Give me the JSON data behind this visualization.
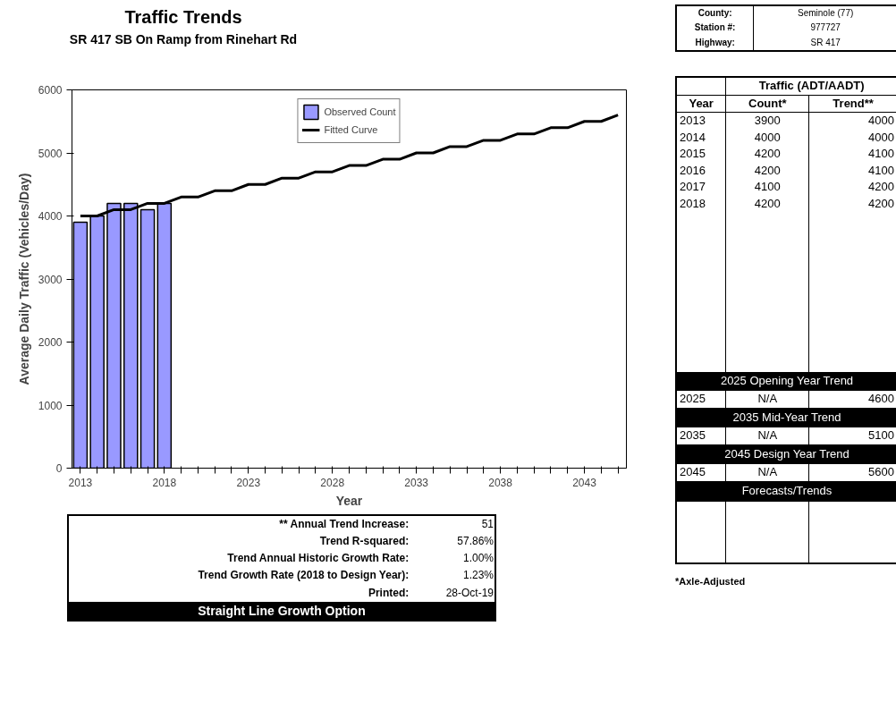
{
  "chart_data": {
    "type": "bar",
    "title": "Traffic Trends",
    "subtitle": "SR 417 SB On Ramp from Rinehart Rd",
    "xlabel": "Year",
    "ylabel": "Average Daily Traffic (Vehicles/Day)",
    "x": [
      2013,
      2014,
      2015,
      2016,
      2017,
      2018
    ],
    "series": [
      {
        "name": "Observed Count",
        "color": "#9999ff",
        "values": [
          3900,
          4000,
          4200,
          4200,
          4100,
          4200
        ]
      },
      {
        "name": "Fitted Curve",
        "type": "line",
        "color": "#000000",
        "x": [
          2013,
          2014,
          2015,
          2016,
          2017,
          2018,
          2019,
          2020,
          2021,
          2022,
          2023,
          2024,
          2025,
          2026,
          2027,
          2028,
          2029,
          2030,
          2031,
          2032,
          2033,
          2034,
          2035,
          2036,
          2037,
          2038,
          2039,
          2040,
          2041,
          2042,
          2043,
          2044,
          2045
        ],
        "values": [
          4000,
          4000,
          4100,
          4100,
          4200,
          4200,
          4300,
          4300,
          4400,
          4400,
          4500,
          4500,
          4600,
          4600,
          4700,
          4700,
          4800,
          4800,
          4900,
          4900,
          5000,
          5000,
          5100,
          5100,
          5200,
          5200,
          5300,
          5300,
          5400,
          5400,
          5500,
          5500,
          5600
        ]
      }
    ],
    "xlim": [
      2012.5,
      2045.5
    ],
    "xticks": [
      2013,
      {
        "value": 2014,
        "label": null
      },
      {
        "value": 2015,
        "label": null
      },
      {
        "value": 2016,
        "label": null
      },
      {
        "value": 2017,
        "label": null
      },
      2018,
      {
        "value": 2019,
        "label": null
      },
      {
        "value": 2020,
        "label": null
      },
      {
        "value": 2021,
        "label": null
      },
      {
        "value": 2022,
        "label": null
      },
      2023,
      {
        "value": 2024,
        "label": null
      },
      {
        "value": 2025,
        "label": null
      },
      {
        "value": 2026,
        "label": null
      },
      {
        "value": 2027,
        "label": null
      },
      2028,
      {
        "value": 2029,
        "label": null
      },
      {
        "value": 2030,
        "label": null
      },
      {
        "value": 2031,
        "label": null
      },
      {
        "value": 2032,
        "label": null
      },
      2033,
      {
        "value": 2034,
        "label": null
      },
      {
        "value": 2035,
        "label": null
      },
      {
        "value": 2036,
        "label": null
      },
      {
        "value": 2037,
        "label": null
      },
      2038,
      {
        "value": 2039,
        "label": null
      },
      {
        "value": 2040,
        "label": null
      },
      {
        "value": 2041,
        "label": null
      },
      {
        "value": 2042,
        "label": null
      },
      2043,
      {
        "value": 2044,
        "label": null
      },
      {
        "value": 2045,
        "label": null
      }
    ],
    "ylim": [
      0,
      6000
    ],
    "yticks": [
      0,
      1000,
      2000,
      3000,
      4000,
      5000,
      6000
    ],
    "grid": false,
    "legend": "top",
    "annotations": [
      "County:",
      "Seminole (77)",
      "Station #:",
      "977727",
      "Highway:",
      "SR 417",
      "Traffic (ADT/AADT)",
      "Year",
      "Count*",
      "Trend**",
      "2013",
      "3900",
      "4000",
      "2014",
      "4000",
      "4000",
      "2015",
      "4200",
      "4100",
      "2016",
      "4200",
      "4100",
      "2017",
      "4100",
      "4200",
      "2018",
      "4200",
      "4200",
      "2025 Opening Year Trend",
      "2025",
      "N/A",
      "4600",
      "2035 Mid-Year Trend",
      "2035",
      "N/A",
      "5100",
      "2045 Design Year Trend",
      "2045",
      "N/A",
      "5600",
      "Forecasts/Trends",
      "*Axle-Adjusted",
      "** Annual Trend Increase:",
      "51",
      "Trend R-squared:",
      "57.86%",
      "Trend Annual Historic Growth Rate:",
      "1.00%",
      "Trend Growth Rate (2018 to Design Year):",
      "1.23%",
      "Printed:",
      "28-Oct-19",
      "Straight Line Growth Option"
    ]
  }
}
